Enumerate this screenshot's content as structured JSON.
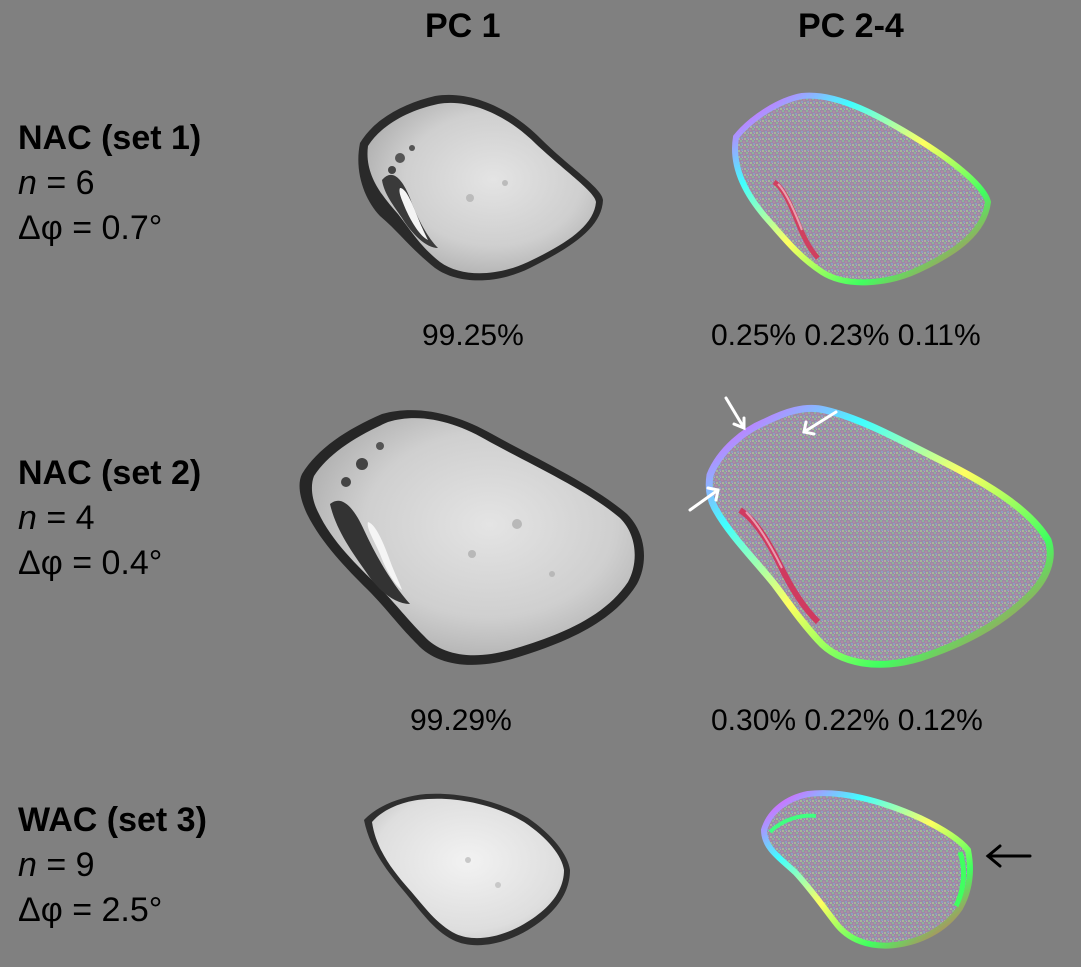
{
  "headers": {
    "pc1": "PC 1",
    "pc24": "PC 2-4"
  },
  "rows": [
    {
      "instrument": "NAC (set 1)",
      "n_symbol": "n",
      "n_value": "= 6",
      "phase_symbol": "Δφ",
      "phase_value": "= 0.7°",
      "pc1_percent": "99.25%",
      "pc24_percent": "0.25% 0.23% 0.11%"
    },
    {
      "instrument": "NAC (set 2)",
      "n_symbol": "n",
      "n_value": "= 4",
      "phase_symbol": "Δφ",
      "phase_value": "= 0.4°",
      "pc1_percent": "99.29%",
      "pc24_percent": "0.30% 0.22% 0.12%"
    },
    {
      "instrument": "WAC (set 3)",
      "n_symbol": "n",
      "n_value": "= 9",
      "phase_symbol": "Δφ",
      "phase_value": "= 2.5°"
    }
  ],
  "colors": {
    "background": "#808080",
    "arrow_white": "#ffffff",
    "arrow_black": "#000000"
  }
}
